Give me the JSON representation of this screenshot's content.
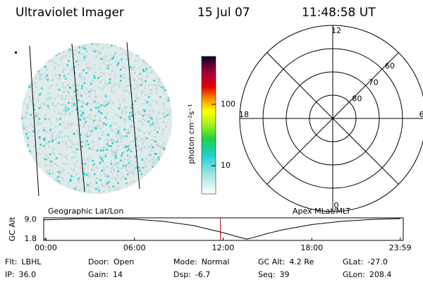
{
  "header": {
    "title": "Ultraviolet Imager",
    "date": "15 Jul 07",
    "time": "11:48:58 UT"
  },
  "image": {
    "label": "Geographic Lat/Lon"
  },
  "colorbar": {
    "label": "photon cm⁻²s⁻¹",
    "scale": "log",
    "lim": [
      3.5,
      600
    ],
    "ticks": [
      10,
      100
    ]
  },
  "polar": {
    "label": "Apex MLat/MLT",
    "rlim": [
      90,
      50
    ],
    "lat_ticks": [
      80,
      70,
      60
    ],
    "mlt_ticks": [
      12,
      6,
      0,
      18
    ]
  },
  "chart_data": {
    "type": "line",
    "ylabel": "GC Alt",
    "x": [
      0,
      2,
      4,
      6,
      8,
      10,
      11,
      12,
      13,
      13.6,
      14,
      15,
      16,
      18,
      20,
      22,
      24
    ],
    "values": [
      9.0,
      9.3,
      9.4,
      9.2,
      8.4,
      6.8,
      5.5,
      4.2,
      2.6,
      1.8,
      2.3,
      3.9,
      5.2,
      7.2,
      8.4,
      9.1,
      9.4
    ],
    "color": "#000000",
    "marker": {
      "x": 11.816,
      "color": "#c00000"
    },
    "xlim": [
      0,
      24
    ],
    "xticks": [
      {
        "value": 0,
        "label": "00:00"
      },
      {
        "value": 6,
        "label": "06:00"
      },
      {
        "value": 12,
        "label": "12:00"
      },
      {
        "value": 18,
        "label": "18:00"
      },
      {
        "value": 23.983,
        "label": "23:59"
      }
    ],
    "ylim": [
      1.3,
      9.7
    ],
    "yticks": [
      {
        "value": 9.0,
        "label": "9.0"
      },
      1.8
    ]
  },
  "info": {
    "rows": [
      [
        [
          "Flt:",
          "LBHL"
        ],
        [
          "Door:",
          "Open"
        ],
        [
          "Mode:",
          "Normal"
        ],
        [
          "GC Alt:",
          "4.2 Re"
        ],
        [
          "GLat:",
          "-27.0"
        ]
      ],
      [
        [
          "IP:",
          "36.0"
        ],
        [
          "Gain:",
          "14"
        ],
        [
          "Dsp:",
          "-6.7"
        ],
        [
          "Seq:",
          "39"
        ],
        [
          "GLon:",
          "208.4"
        ]
      ]
    ]
  }
}
